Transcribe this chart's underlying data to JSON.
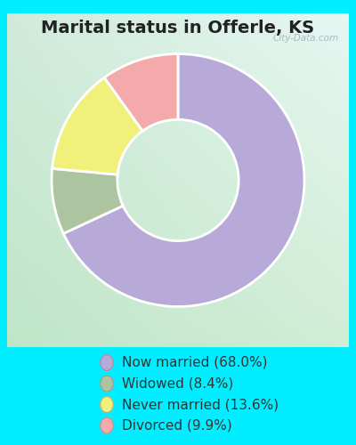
{
  "title": "Marital status in Offerle, KS",
  "slices": [
    68.0,
    8.4,
    13.6,
    9.9
  ],
  "labels": [
    "Now married (68.0%)",
    "Widowed (8.4%)",
    "Never married (13.6%)",
    "Divorced (9.9%)"
  ],
  "colors": [
    "#b8aad8",
    "#adc4a0",
    "#f0f07a",
    "#f4aaaa"
  ],
  "bg_color_topleft": "#d8ede0",
  "bg_color_topright": "#e8f5f0",
  "bg_color_bottomleft": "#cce8cc",
  "bg_color_bottomright": "#d8eedc",
  "outer_bg": "#00eeff",
  "donut_width": 0.52,
  "start_angle": 90,
  "title_fontsize": 14,
  "legend_fontsize": 11,
  "watermark": "City-Data.com",
  "title_color": "#222222",
  "legend_text_color": "#333333"
}
